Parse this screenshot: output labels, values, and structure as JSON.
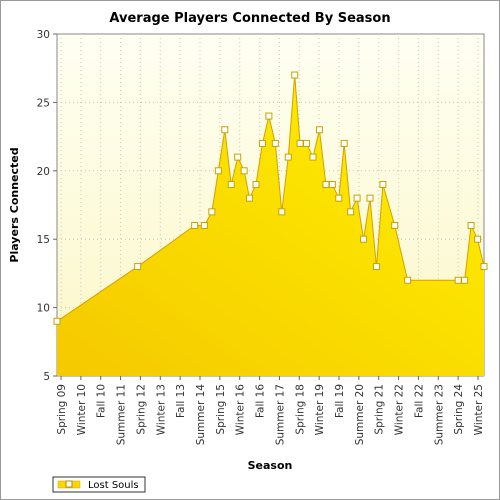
{
  "chart_data": {
    "type": "area",
    "title": "Average Players Connected By Season",
    "xlabel": "Season",
    "ylabel": "Players Connected",
    "ylim": [
      5,
      30
    ],
    "yticks": [
      5,
      10,
      15,
      20,
      25,
      30
    ],
    "grid": true,
    "legend_position": "bottom-left",
    "x_tick_labels": [
      "Spring 09",
      "Winter 10",
      "Fall 10",
      "Summer 11",
      "Spring 12",
      "Winter 13",
      "Fall 13",
      "Summer 14",
      "Spring 15",
      "Winter 16",
      "Fall 16",
      "Summer 17",
      "Spring 18",
      "Winter 19",
      "Fall 19",
      "Summer 20",
      "Spring 21",
      "Winter 22",
      "Fall 22",
      "Summer 23",
      "Spring 24",
      "Winter 25"
    ],
    "series": [
      {
        "name": "Lost Souls",
        "color": "#ffd700",
        "points": [
          {
            "x": 0,
            "y": 9
          },
          {
            "x": 7.5,
            "y": 13
          },
          {
            "x": 12.8,
            "y": 16
          },
          {
            "x": 13.7,
            "y": 16
          },
          {
            "x": 14.4,
            "y": 17
          },
          {
            "x": 15.0,
            "y": 20
          },
          {
            "x": 15.6,
            "y": 23
          },
          {
            "x": 16.2,
            "y": 19
          },
          {
            "x": 16.8,
            "y": 21
          },
          {
            "x": 17.4,
            "y": 20
          },
          {
            "x": 17.9,
            "y": 18
          },
          {
            "x": 18.5,
            "y": 19
          },
          {
            "x": 19.1,
            "y": 22
          },
          {
            "x": 19.7,
            "y": 24
          },
          {
            "x": 20.3,
            "y": 22
          },
          {
            "x": 20.9,
            "y": 17
          },
          {
            "x": 21.5,
            "y": 21
          },
          {
            "x": 22.1,
            "y": 27
          },
          {
            "x": 22.6,
            "y": 22
          },
          {
            "x": 23.2,
            "y": 22
          },
          {
            "x": 23.8,
            "y": 21
          },
          {
            "x": 24.4,
            "y": 23
          },
          {
            "x": 25.0,
            "y": 19
          },
          {
            "x": 25.6,
            "y": 19
          },
          {
            "x": 26.2,
            "y": 18
          },
          {
            "x": 26.7,
            "y": 22
          },
          {
            "x": 27.3,
            "y": 17
          },
          {
            "x": 27.9,
            "y": 18
          },
          {
            "x": 28.5,
            "y": 15
          },
          {
            "x": 29.1,
            "y": 18
          },
          {
            "x": 29.7,
            "y": 13
          },
          {
            "x": 30.3,
            "y": 19
          },
          {
            "x": 31.4,
            "y": 16
          },
          {
            "x": 32.6,
            "y": 12
          },
          {
            "x": 37.3,
            "y": 12
          },
          {
            "x": 37.9,
            "y": 12
          },
          {
            "x": 38.5,
            "y": 16
          },
          {
            "x": 39.1,
            "y": 15
          },
          {
            "x": 39.7,
            "y": 13
          }
        ]
      }
    ]
  }
}
